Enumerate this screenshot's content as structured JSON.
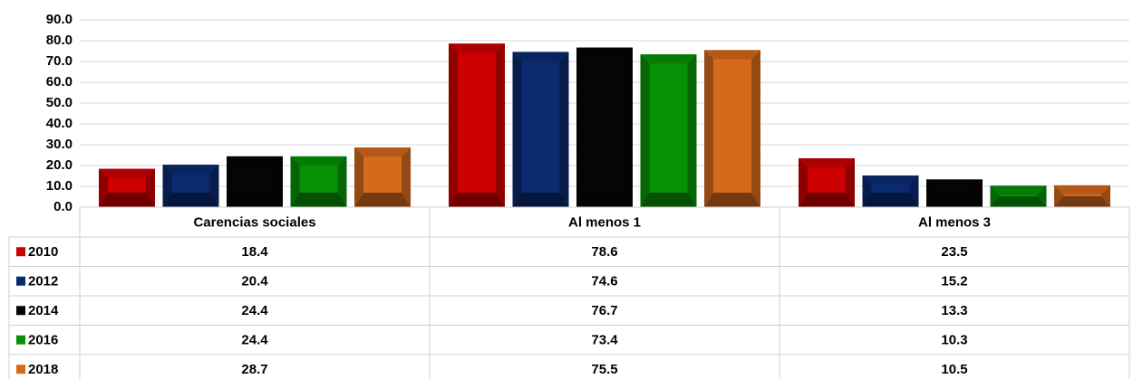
{
  "chart_data": {
    "type": "bar",
    "categories": [
      "Carencias sociales",
      "Al menos 1",
      "Al menos 3"
    ],
    "series": [
      {
        "name": "2010",
        "color": "#cc0000",
        "values": [
          18.4,
          78.6,
          23.5
        ]
      },
      {
        "name": "2012",
        "color": "#0a2a6e",
        "values": [
          20.4,
          74.6,
          15.2
        ]
      },
      {
        "name": "2014",
        "color": "#050505",
        "values": [
          24.4,
          76.7,
          13.3
        ]
      },
      {
        "name": "2016",
        "color": "#079107",
        "values": [
          24.4,
          73.4,
          10.3
        ]
      },
      {
        "name": "2018",
        "color": "#d5691c",
        "values": [
          28.7,
          75.5,
          10.5
        ]
      }
    ],
    "ylim": [
      0,
      90
    ],
    "yticks": [
      {
        "value": 0,
        "label": "0.0"
      },
      {
        "value": 10,
        "label": "10.0"
      },
      {
        "value": 20,
        "label": "20.0"
      },
      {
        "value": 30,
        "label": "30.0"
      },
      {
        "value": 40,
        "label": "40.0"
      },
      {
        "value": 50,
        "label": "50.0"
      },
      {
        "value": 60,
        "label": "60.0"
      },
      {
        "value": 70,
        "label": "70.0"
      },
      {
        "value": 80,
        "label": "80.0"
      },
      {
        "value": 90,
        "label": "90.0"
      }
    ],
    "grid": true,
    "data_table": true
  }
}
